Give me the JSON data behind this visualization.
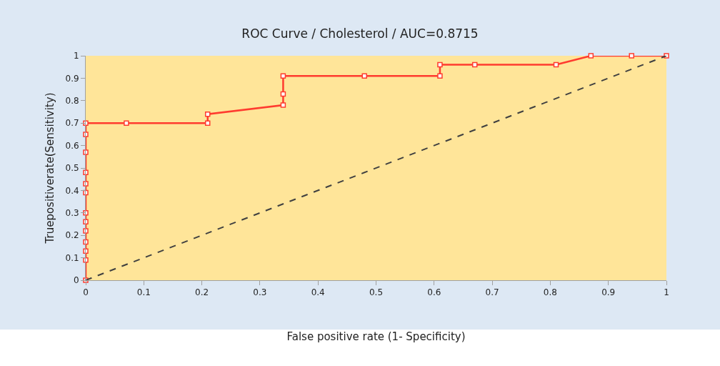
{
  "chart_data": {
    "type": "line",
    "title": "ROC Curve / Cholesterol / AUC=0.8715",
    "xlabel": "False positive rate (1- Specificity)",
    "ylabel": "Truepositiverate(Sensitivity)",
    "series": [
      {
        "color": "#ff3b2f",
        "marker": "square",
        "line_style": "solid",
        "x": [
          0,
          0,
          0,
          0,
          0,
          0,
          0,
          0,
          0,
          0,
          0,
          0,
          0,
          0.07,
          0.21,
          0.21,
          0.34,
          0.34,
          0.34,
          0.48,
          0.61,
          0.61,
          0.67,
          0.81,
          0.87,
          0.94,
          1
        ],
        "values": [
          0,
          0.09,
          0.13,
          0.17,
          0.22,
          0.26,
          0.3,
          0.39,
          0.43,
          0.48,
          0.57,
          0.65,
          0.7,
          0.7,
          0.7,
          0.74,
          0.78,
          0.83,
          0.91,
          0.91,
          0.91,
          0.96,
          0.96,
          0.96,
          1,
          1,
          1
        ]
      },
      {
        "color": "#404040",
        "marker": "none",
        "line_style": "dashed",
        "x": [
          0,
          1
        ],
        "values": [
          0,
          1
        ]
      }
    ],
    "xlim": [
      0,
      1
    ],
    "ylim": [
      0,
      1
    ],
    "xticks": [
      0,
      0.1,
      0.2,
      0.3,
      0.4,
      0.5,
      0.6,
      0.7,
      0.8,
      0.9,
      1
    ],
    "yticks": [
      0,
      0.1,
      0.2,
      0.3,
      0.4,
      0.5,
      0.6,
      0.7,
      0.8,
      0.9,
      1
    ],
    "grid": false
  }
}
